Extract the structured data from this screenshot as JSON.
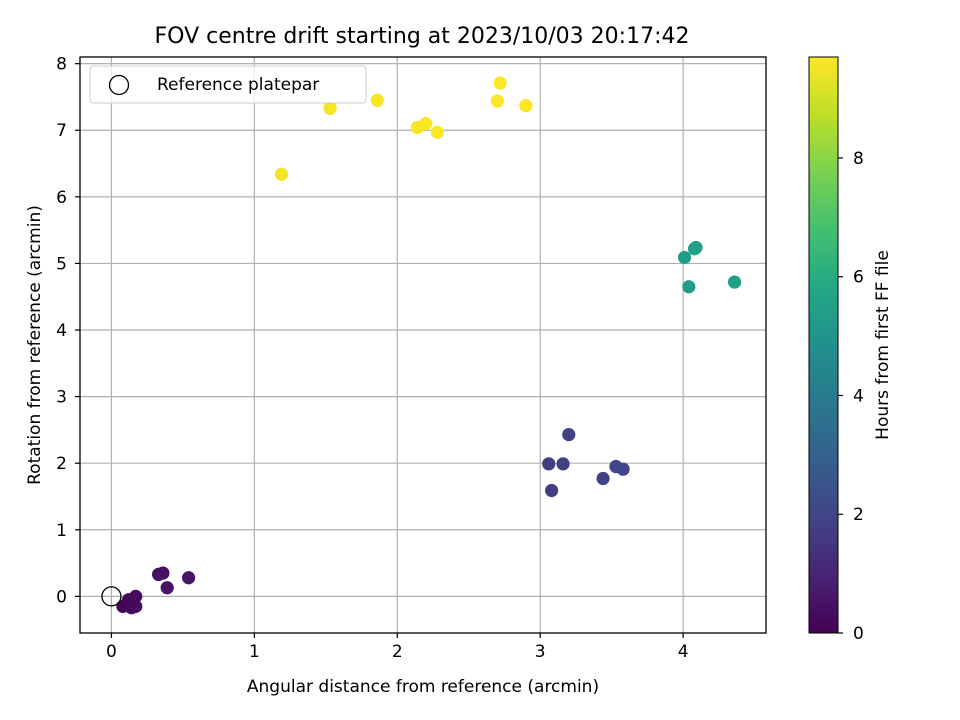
{
  "chart_data": {
    "type": "scatter",
    "title": "FOV centre drift starting at 2023/10/03 20:17:42",
    "xlabel": "Angular distance from reference (arcmin)",
    "ylabel": "Rotation from reference (arcmin)",
    "xlim": [
      -0.22,
      4.58
    ],
    "ylim": [
      -0.55,
      8.1
    ],
    "xticks": [
      0,
      1,
      2,
      3,
      4
    ],
    "yticks": [
      0,
      1,
      2,
      3,
      4,
      5,
      6,
      7,
      8
    ],
    "grid": true,
    "legend": {
      "position": "upper-left",
      "entries": [
        "Reference platepar"
      ]
    },
    "reference_point": {
      "x": 0,
      "y": 0,
      "label": "Reference platepar"
    },
    "colorbar": {
      "label": "Hours from first FF file",
      "range": [
        0,
        9.7
      ],
      "ticks": [
        0,
        2,
        4,
        6,
        8
      ],
      "colormap": "viridis"
    },
    "points": [
      {
        "x": 0.08,
        "y": -0.15,
        "c": 0.1
      },
      {
        "x": 0.12,
        "y": -0.05,
        "c": 0.15
      },
      {
        "x": 0.14,
        "y": -0.17,
        "c": 0.2
      },
      {
        "x": 0.17,
        "y": -0.15,
        "c": 0.25
      },
      {
        "x": 0.17,
        "y": 0.0,
        "c": 0.3
      },
      {
        "x": 0.33,
        "y": 0.33,
        "c": 0.4
      },
      {
        "x": 0.36,
        "y": 0.35,
        "c": 0.45
      },
      {
        "x": 0.39,
        "y": 0.13,
        "c": 0.5
      },
      {
        "x": 0.54,
        "y": 0.28,
        "c": 0.55
      },
      {
        "x": 3.06,
        "y": 1.99,
        "c": 1.7
      },
      {
        "x": 3.08,
        "y": 1.59,
        "c": 1.75
      },
      {
        "x": 3.16,
        "y": 1.99,
        "c": 1.8
      },
      {
        "x": 3.2,
        "y": 2.43,
        "c": 1.85
      },
      {
        "x": 3.44,
        "y": 1.77,
        "c": 1.9
      },
      {
        "x": 3.53,
        "y": 1.95,
        "c": 1.95
      },
      {
        "x": 3.58,
        "y": 1.91,
        "c": 2.0
      },
      {
        "x": 4.01,
        "y": 5.09,
        "c": 5.3
      },
      {
        "x": 4.04,
        "y": 4.65,
        "c": 5.35
      },
      {
        "x": 4.08,
        "y": 5.22,
        "c": 5.4
      },
      {
        "x": 4.09,
        "y": 5.24,
        "c": 5.42
      },
      {
        "x": 4.36,
        "y": 4.72,
        "c": 5.45
      },
      {
        "x": 1.19,
        "y": 6.34,
        "c": 9.55
      },
      {
        "x": 1.53,
        "y": 7.33,
        "c": 9.57
      },
      {
        "x": 1.86,
        "y": 7.45,
        "c": 9.6
      },
      {
        "x": 2.14,
        "y": 7.04,
        "c": 9.62
      },
      {
        "x": 2.2,
        "y": 7.1,
        "c": 9.64
      },
      {
        "x": 2.28,
        "y": 6.97,
        "c": 9.65
      },
      {
        "x": 2.7,
        "y": 7.44,
        "c": 9.67
      },
      {
        "x": 2.72,
        "y": 7.71,
        "c": 9.68
      },
      {
        "x": 2.9,
        "y": 7.37,
        "c": 9.7
      }
    ]
  }
}
